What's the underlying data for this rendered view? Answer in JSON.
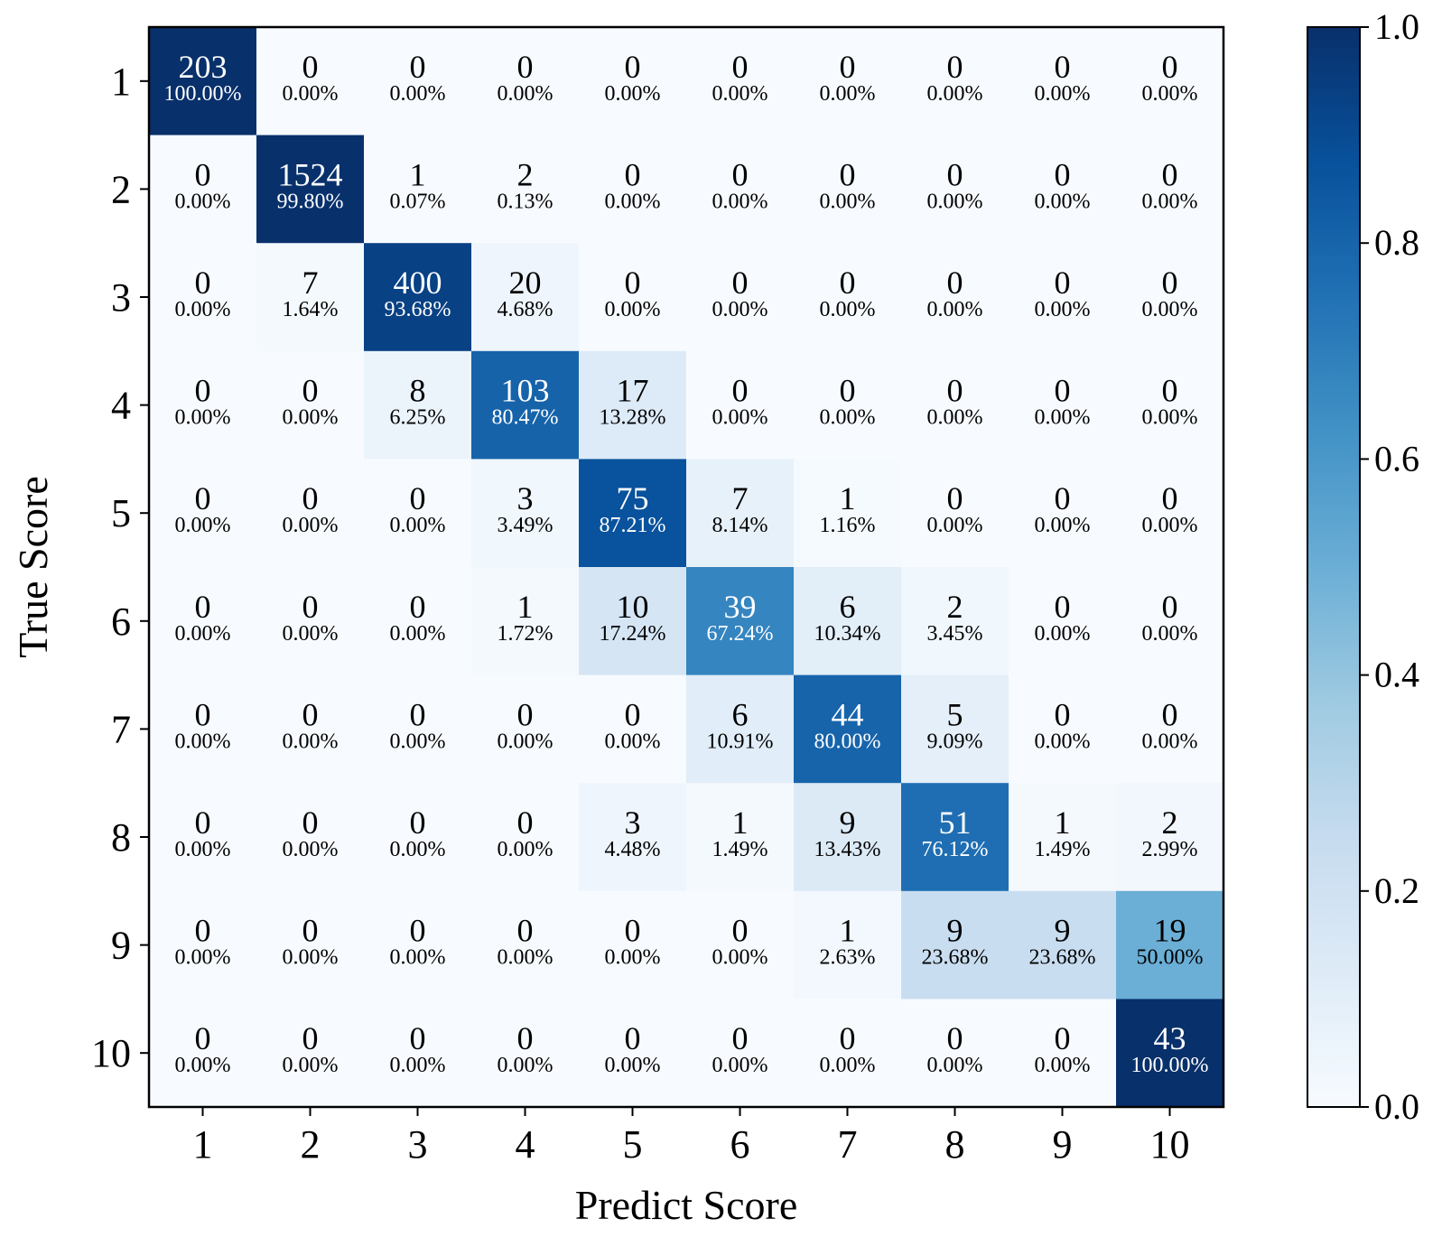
{
  "chart_data": {
    "type": "heatmap",
    "title": "",
    "xlabel": "Predict Score",
    "ylabel": "True Score",
    "x_categories": [
      "1",
      "2",
      "3",
      "4",
      "5",
      "6",
      "7",
      "8",
      "9",
      "10"
    ],
    "y_categories": [
      "1",
      "2",
      "3",
      "4",
      "5",
      "6",
      "7",
      "8",
      "9",
      "10"
    ],
    "counts": [
      [
        203,
        0,
        0,
        0,
        0,
        0,
        0,
        0,
        0,
        0
      ],
      [
        0,
        1524,
        1,
        2,
        0,
        0,
        0,
        0,
        0,
        0
      ],
      [
        0,
        7,
        400,
        20,
        0,
        0,
        0,
        0,
        0,
        0
      ],
      [
        0,
        0,
        8,
        103,
        17,
        0,
        0,
        0,
        0,
        0
      ],
      [
        0,
        0,
        0,
        3,
        75,
        7,
        1,
        0,
        0,
        0
      ],
      [
        0,
        0,
        0,
        1,
        10,
        39,
        6,
        2,
        0,
        0
      ],
      [
        0,
        0,
        0,
        0,
        0,
        6,
        44,
        5,
        0,
        0
      ],
      [
        0,
        0,
        0,
        0,
        3,
        1,
        9,
        51,
        1,
        2
      ],
      [
        0,
        0,
        0,
        0,
        0,
        0,
        1,
        9,
        9,
        19
      ],
      [
        0,
        0,
        0,
        0,
        0,
        0,
        0,
        0,
        0,
        43
      ]
    ],
    "percentages": [
      [
        "100.00%",
        "0.00%",
        "0.00%",
        "0.00%",
        "0.00%",
        "0.00%",
        "0.00%",
        "0.00%",
        "0.00%",
        "0.00%"
      ],
      [
        "0.00%",
        "99.80%",
        "0.07%",
        "0.13%",
        "0.00%",
        "0.00%",
        "0.00%",
        "0.00%",
        "0.00%",
        "0.00%"
      ],
      [
        "0.00%",
        "1.64%",
        "93.68%",
        "4.68%",
        "0.00%",
        "0.00%",
        "0.00%",
        "0.00%",
        "0.00%",
        "0.00%"
      ],
      [
        "0.00%",
        "0.00%",
        "6.25%",
        "80.47%",
        "13.28%",
        "0.00%",
        "0.00%",
        "0.00%",
        "0.00%",
        "0.00%"
      ],
      [
        "0.00%",
        "0.00%",
        "0.00%",
        "3.49%",
        "87.21%",
        "8.14%",
        "1.16%",
        "0.00%",
        "0.00%",
        "0.00%"
      ],
      [
        "0.00%",
        "0.00%",
        "0.00%",
        "1.72%",
        "17.24%",
        "67.24%",
        "10.34%",
        "3.45%",
        "0.00%",
        "0.00%"
      ],
      [
        "0.00%",
        "0.00%",
        "0.00%",
        "0.00%",
        "0.00%",
        "10.91%",
        "80.00%",
        "9.09%",
        "0.00%",
        "0.00%"
      ],
      [
        "0.00%",
        "0.00%",
        "0.00%",
        "0.00%",
        "4.48%",
        "1.49%",
        "13.43%",
        "76.12%",
        "1.49%",
        "2.99%"
      ],
      [
        "0.00%",
        "0.00%",
        "0.00%",
        "0.00%",
        "0.00%",
        "0.00%",
        "2.63%",
        "23.68%",
        "23.68%",
        "50.00%"
      ],
      [
        "0.00%",
        "0.00%",
        "0.00%",
        "0.00%",
        "0.00%",
        "0.00%",
        "0.00%",
        "0.00%",
        "0.00%",
        "100.00%"
      ]
    ],
    "colorbar": {
      "min": 0.0,
      "max": 1.0,
      "ticks": [
        "0.0",
        "0.2",
        "0.4",
        "0.6",
        "0.8",
        "1.0"
      ],
      "colormap": "Blues"
    }
  }
}
